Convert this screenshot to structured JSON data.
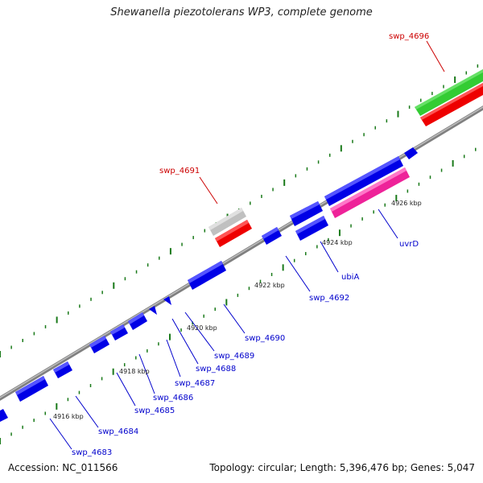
{
  "title": "Shewanella piezotolerans WP3, complete genome",
  "footer": {
    "accession": "Accession: NC_011566",
    "topology": "Topology: circular; Length: 5,396,476 bp; Genes: 5,047"
  },
  "colors": {
    "forward_gene": "#0000e6",
    "highlight_green": "#33cc33",
    "highlight_red": "#ee0000",
    "highlight_grey": "#c0c0c0",
    "highlight_pink": "#ee2299",
    "backbone": "#808080",
    "tick_marks": "#1a7a1a",
    "label_blue": "#0000cc",
    "label_red": "#cc0000"
  },
  "tick_labels": [
    {
      "id": "t4916",
      "text": "4916 kbp"
    },
    {
      "id": "t4918",
      "text": "4918 kbp"
    },
    {
      "id": "t4920",
      "text": "4920 kbp"
    },
    {
      "id": "t4922",
      "text": "4922 kbp"
    },
    {
      "id": "t4924",
      "text": "4924 kbp"
    },
    {
      "id": "t4926",
      "text": "4926 kbp"
    }
  ],
  "gene_labels": [
    {
      "id": "swp_4696",
      "text": "swp_4696",
      "color": "red"
    },
    {
      "id": "swp_4691",
      "text": "swp_4691",
      "color": "red"
    },
    {
      "id": "uvrD",
      "text": "uvrD",
      "color": "blue"
    },
    {
      "id": "ubiA",
      "text": "ubiA",
      "color": "blue"
    },
    {
      "id": "swp_4692",
      "text": "swp_4692",
      "color": "blue"
    },
    {
      "id": "swp_4690",
      "text": "swp_4690",
      "color": "blue"
    },
    {
      "id": "swp_4689",
      "text": "swp_4689",
      "color": "blue"
    },
    {
      "id": "swp_4688",
      "text": "swp_4688",
      "color": "blue"
    },
    {
      "id": "swp_4687",
      "text": "swp_4687",
      "color": "blue"
    },
    {
      "id": "swp_4686",
      "text": "swp_4686",
      "color": "blue"
    },
    {
      "id": "swp_4685",
      "text": "swp_4685",
      "color": "blue"
    },
    {
      "id": "swp_4684",
      "text": "swp_4684",
      "color": "blue"
    },
    {
      "id": "swp_4683",
      "text": "swp_4683",
      "color": "blue"
    }
  ]
}
